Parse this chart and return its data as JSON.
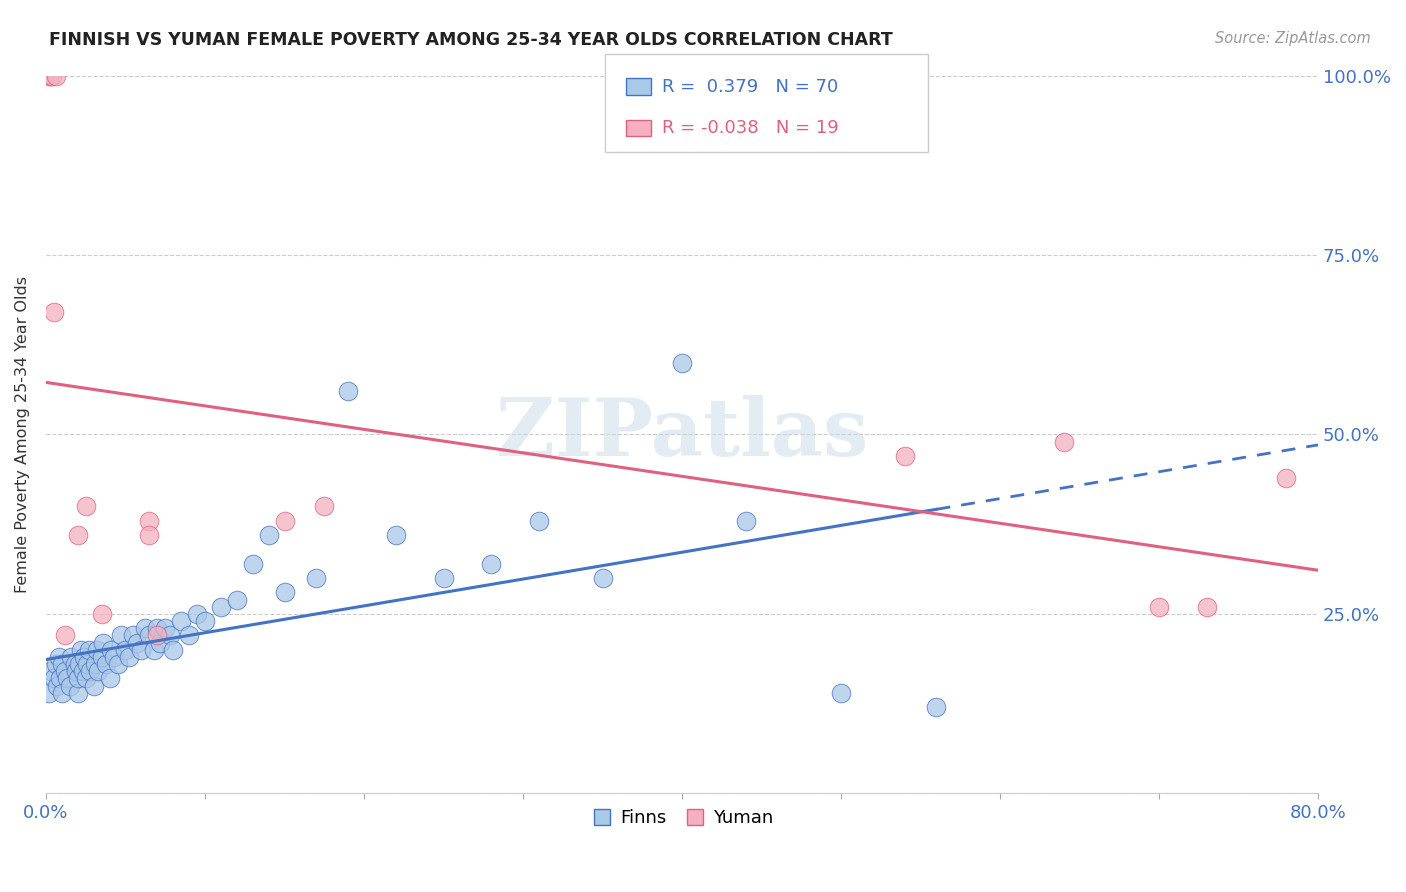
{
  "title": "FINNISH VS YUMAN FEMALE POVERTY AMONG 25-34 YEAR OLDS CORRELATION CHART",
  "source": "Source: ZipAtlas.com",
  "ylabel": "Female Poverty Among 25-34 Year Olds",
  "watermark": "ZIPatlas",
  "legend_blue_R": "0.379",
  "legend_blue_N": "70",
  "legend_pink_R": "-0.038",
  "legend_pink_N": "19",
  "finn_color": "#aac8e8",
  "yuman_color": "#f4b0c0",
  "finn_line_color": "#4472c4",
  "yuman_line_color": "#e06080",
  "background_color": "#ffffff",
  "finn_points_x": [
    0.002,
    0.003,
    0.005,
    0.006,
    0.007,
    0.008,
    0.009,
    0.01,
    0.01,
    0.012,
    0.013,
    0.015,
    0.016,
    0.018,
    0.019,
    0.02,
    0.02,
    0.021,
    0.022,
    0.023,
    0.024,
    0.025,
    0.026,
    0.027,
    0.028,
    0.03,
    0.031,
    0.032,
    0.033,
    0.035,
    0.036,
    0.038,
    0.04,
    0.041,
    0.043,
    0.045,
    0.047,
    0.05,
    0.052,
    0.055,
    0.057,
    0.06,
    0.062,
    0.065,
    0.068,
    0.07,
    0.072,
    0.075,
    0.078,
    0.08,
    0.085,
    0.09,
    0.095,
    0.1,
    0.11,
    0.12,
    0.13,
    0.14,
    0.15,
    0.17,
    0.19,
    0.22,
    0.25,
    0.28,
    0.31,
    0.35,
    0.4,
    0.44,
    0.5,
    0.56
  ],
  "finn_points_y": [
    0.14,
    0.17,
    0.16,
    0.18,
    0.15,
    0.19,
    0.16,
    0.14,
    0.18,
    0.17,
    0.16,
    0.15,
    0.19,
    0.18,
    0.17,
    0.14,
    0.16,
    0.18,
    0.2,
    0.17,
    0.19,
    0.16,
    0.18,
    0.2,
    0.17,
    0.15,
    0.18,
    0.2,
    0.17,
    0.19,
    0.21,
    0.18,
    0.16,
    0.2,
    0.19,
    0.18,
    0.22,
    0.2,
    0.19,
    0.22,
    0.21,
    0.2,
    0.23,
    0.22,
    0.2,
    0.23,
    0.21,
    0.23,
    0.22,
    0.2,
    0.24,
    0.22,
    0.25,
    0.24,
    0.26,
    0.27,
    0.32,
    0.36,
    0.28,
    0.3,
    0.56,
    0.36,
    0.3,
    0.32,
    0.38,
    0.3,
    0.6,
    0.38,
    0.14,
    0.12
  ],
  "yuman_points_x": [
    0.002,
    0.003,
    0.004,
    0.005,
    0.006,
    0.012,
    0.02,
    0.025,
    0.035,
    0.065,
    0.065,
    0.07,
    0.15,
    0.175,
    0.54,
    0.64,
    0.7,
    0.73,
    0.78
  ],
  "yuman_points_y": [
    1.0,
    1.0,
    1.0,
    0.67,
    1.0,
    0.22,
    0.36,
    0.4,
    0.25,
    0.38,
    0.36,
    0.22,
    0.38,
    0.4,
    0.47,
    0.49,
    0.26,
    0.26,
    0.44
  ]
}
